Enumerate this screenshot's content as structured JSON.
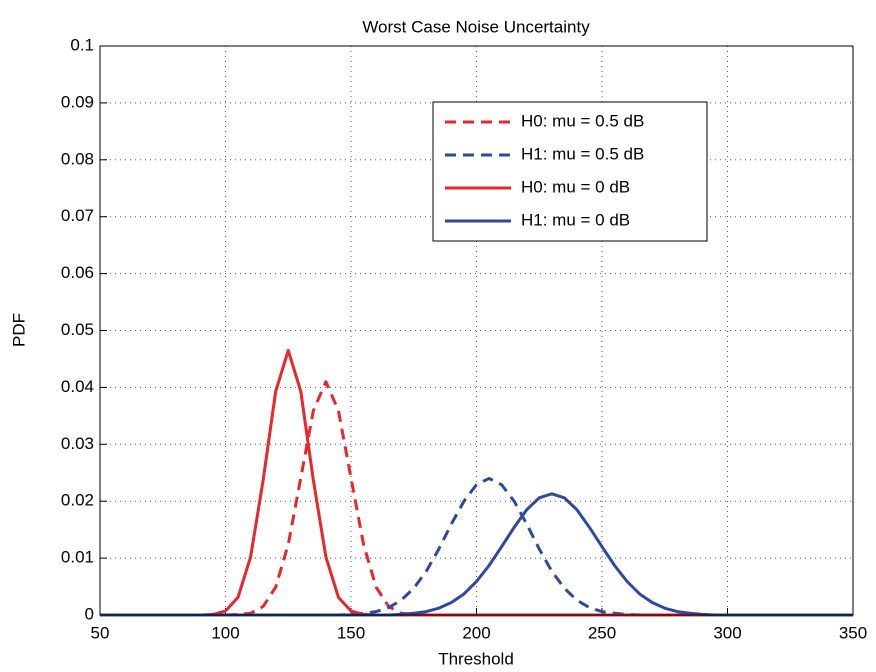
{
  "chart_data": {
    "type": "line",
    "title": "Worst Case Noise Uncertainty",
    "x_label": "Threshold",
    "y_label": "PDF",
    "xlim": [
      50,
      350
    ],
    "xticks": [
      50,
      100,
      150,
      200,
      250,
      300,
      350
    ],
    "ylim": [
      0,
      0.1
    ],
    "yticks": [
      0,
      0.01,
      0.02,
      0.03,
      0.04,
      0.05,
      0.06,
      0.07,
      0.08,
      0.09,
      0.1
    ],
    "grid": true,
    "legend": "upper right",
    "x": [
      50,
      55,
      60,
      65,
      70,
      75,
      80,
      85,
      90,
      95,
      100,
      105,
      110,
      115,
      120,
      125,
      130,
      135,
      140,
      145,
      150,
      155,
      160,
      165,
      170,
      175,
      180,
      185,
      190,
      195,
      200,
      205,
      210,
      215,
      220,
      225,
      230,
      235,
      240,
      245,
      250,
      255,
      260,
      265,
      270,
      275,
      280,
      285,
      290,
      295,
      300,
      305,
      310,
      315,
      320,
      325,
      330,
      335,
      340,
      345,
      350
    ],
    "series": [
      {
        "name": "H0: mu = 0.5 dB",
        "color": "#e8262b",
        "style": "dashed",
        "values": [
          0,
          0,
          0,
          0,
          0,
          0,
          0,
          0,
          0,
          0,
          0,
          0.0001,
          0.0003,
          0.0015,
          0.0049,
          0.0124,
          0.0241,
          0.0359,
          0.041,
          0.0359,
          0.0241,
          0.0124,
          0.0049,
          0.0015,
          0.0003,
          0.0001,
          0,
          0,
          0,
          0,
          0,
          0,
          0,
          0,
          0,
          0,
          0,
          0,
          0,
          0,
          0,
          0,
          0,
          0,
          0,
          0,
          0,
          0,
          0,
          0,
          0,
          0,
          0,
          0,
          0,
          0,
          0,
          0,
          0,
          0,
          0
        ]
      },
      {
        "name": "H1: mu = 0.5 dB",
        "color": "#2e4a9b",
        "style": "dashed",
        "values": [
          0,
          0,
          0,
          0,
          0,
          0,
          0,
          0,
          0,
          0,
          0,
          0,
          0,
          0,
          0,
          0,
          0,
          0,
          0,
          0,
          0.0001,
          0.0003,
          0.0006,
          0.0013,
          0.0026,
          0.0047,
          0.0077,
          0.0116,
          0.016,
          0.02,
          0.0229,
          0.024,
          0.0229,
          0.02,
          0.016,
          0.0116,
          0.0077,
          0.0047,
          0.0026,
          0.0013,
          0.0006,
          0.0003,
          0.0001,
          0,
          0,
          0,
          0,
          0,
          0,
          0,
          0,
          0,
          0,
          0,
          0,
          0,
          0,
          0,
          0,
          0,
          0
        ]
      },
      {
        "name": "H0: mu = 0 dB",
        "color": "#e8262b",
        "style": "solid",
        "values": [
          0,
          0,
          0,
          0,
          0,
          0,
          0,
          0,
          0,
          0.0001,
          0.0007,
          0.0031,
          0.0102,
          0.0237,
          0.0393,
          0.0465,
          0.0393,
          0.0237,
          0.0102,
          0.0031,
          0.0007,
          0.0001,
          0,
          0,
          0,
          0,
          0,
          0,
          0,
          0,
          0,
          0,
          0,
          0,
          0,
          0,
          0,
          0,
          0,
          0,
          0,
          0,
          0,
          0,
          0,
          0,
          0,
          0,
          0,
          0,
          0,
          0,
          0,
          0,
          0,
          0,
          0,
          0,
          0,
          0,
          0
        ]
      },
      {
        "name": "H1: mu = 0 dB",
        "color": "#2e4a9b",
        "style": "solid",
        "values": [
          0,
          0,
          0,
          0,
          0,
          0,
          0,
          0,
          0,
          0,
          0,
          0,
          0,
          0,
          0,
          0,
          0,
          0,
          0,
          0,
          0,
          0,
          0,
          0,
          0.0001,
          0.0003,
          0.0006,
          0.0012,
          0.0022,
          0.0037,
          0.0059,
          0.0087,
          0.012,
          0.0154,
          0.0185,
          0.0206,
          0.0213,
          0.0206,
          0.0185,
          0.0154,
          0.012,
          0.0087,
          0.0059,
          0.0037,
          0.0022,
          0.0012,
          0.0006,
          0.0003,
          0.0001,
          0,
          0,
          0,
          0,
          0,
          0,
          0,
          0,
          0,
          0,
          0,
          0
        ]
      }
    ]
  }
}
